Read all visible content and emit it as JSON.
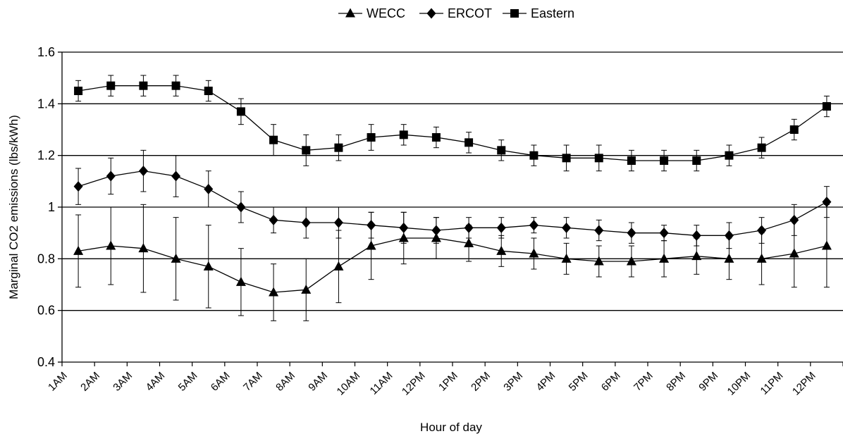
{
  "chart_data": {
    "type": "line",
    "xlabel": "Hour of day",
    "ylabel": "Marginal CO2 emissions (lbs/kWh)",
    "ylim": [
      0.4,
      1.6
    ],
    "yticks": [
      "0.4",
      "0.6",
      "0.8",
      "1",
      "1.2",
      "1.4",
      "1.6"
    ],
    "categories": [
      "1AM",
      "2AM",
      "3AM",
      "4AM",
      "5AM",
      "6AM",
      "7AM",
      "8AM",
      "9AM",
      "10AM",
      "11AM",
      "12PM",
      "1PM",
      "2PM",
      "3PM",
      "4PM",
      "5PM",
      "6PM",
      "7PM",
      "8PM",
      "9PM",
      "10PM",
      "11PM",
      "12PM"
    ],
    "grid": "horizontal",
    "legend_position": "top-center",
    "series": [
      {
        "name": "WECC",
        "marker": "triangle",
        "values": [
          0.83,
          0.85,
          0.84,
          0.8,
          0.77,
          0.71,
          0.67,
          0.68,
          0.77,
          0.85,
          0.88,
          0.88,
          0.86,
          0.83,
          0.82,
          0.8,
          0.79,
          0.79,
          0.8,
          0.81,
          0.8,
          0.8,
          0.82,
          0.85
        ],
        "errors": [
          0.14,
          0.15,
          0.17,
          0.16,
          0.16,
          0.13,
          0.11,
          0.12,
          0.14,
          0.13,
          0.1,
          0.08,
          0.07,
          0.06,
          0.06,
          0.06,
          0.06,
          0.06,
          0.07,
          0.07,
          0.08,
          0.1,
          0.13,
          0.16
        ]
      },
      {
        "name": "ERCOT",
        "marker": "diamond",
        "values": [
          1.08,
          1.12,
          1.14,
          1.12,
          1.07,
          1.0,
          0.95,
          0.94,
          0.94,
          0.93,
          0.92,
          0.91,
          0.92,
          0.92,
          0.93,
          0.92,
          0.91,
          0.9,
          0.9,
          0.89,
          0.89,
          0.91,
          0.95,
          1.02
        ],
        "errors": [
          0.07,
          0.07,
          0.08,
          0.08,
          0.07,
          0.06,
          0.05,
          0.06,
          0.06,
          0.05,
          0.06,
          0.05,
          0.04,
          0.04,
          0.03,
          0.04,
          0.04,
          0.04,
          0.03,
          0.04,
          0.05,
          0.05,
          0.06,
          0.06
        ]
      },
      {
        "name": "Eastern",
        "marker": "square",
        "values": [
          1.45,
          1.47,
          1.47,
          1.47,
          1.45,
          1.37,
          1.26,
          1.22,
          1.23,
          1.27,
          1.28,
          1.27,
          1.25,
          1.22,
          1.2,
          1.19,
          1.19,
          1.18,
          1.18,
          1.18,
          1.2,
          1.23,
          1.3,
          1.39
        ],
        "errors": [
          0.04,
          0.04,
          0.04,
          0.04,
          0.04,
          0.05,
          0.06,
          0.06,
          0.05,
          0.05,
          0.04,
          0.04,
          0.04,
          0.04,
          0.04,
          0.05,
          0.05,
          0.04,
          0.04,
          0.04,
          0.04,
          0.04,
          0.04,
          0.04
        ]
      }
    ]
  }
}
